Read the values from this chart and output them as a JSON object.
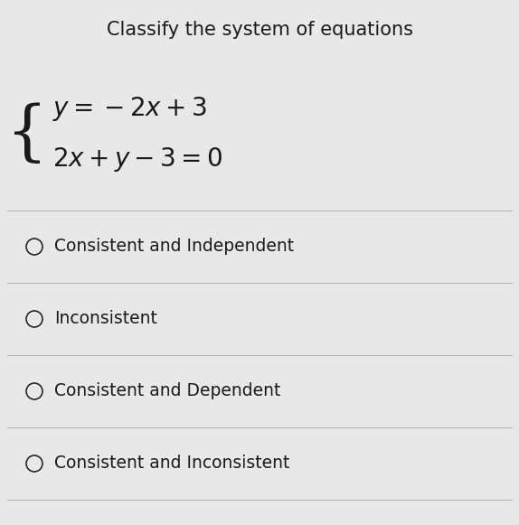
{
  "title": "Classify the system of equations",
  "equation_line1": "$y = -2x + 3$",
  "equation_line2": "$2x + y - 3 = 0$",
  "options": [
    "Consistent and Independent",
    "Inconsistent",
    "Consistent and Dependent",
    "Consistent and Inconsistent"
  ],
  "bg_color": "#e8e8e8",
  "text_color": "#1a1a1a",
  "title_fontsize": 15,
  "eq_fontsize": 20,
  "option_fontsize": 13.5,
  "divider_color": "#b0b0b0",
  "divider_linewidth": 0.7
}
